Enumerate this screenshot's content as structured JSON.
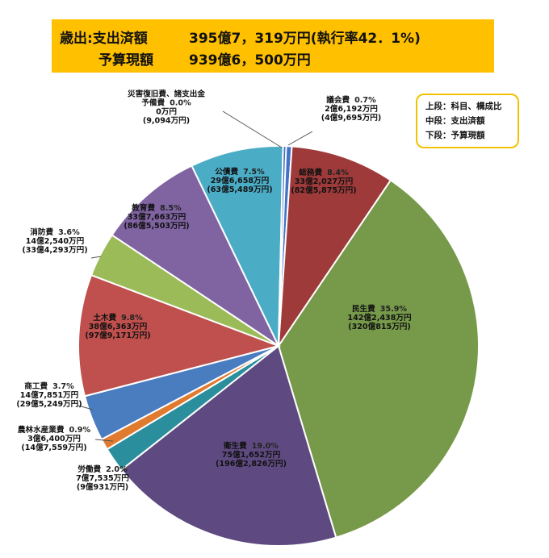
{
  "banner": {
    "expenditure_label": "歳出:支出済額",
    "expenditure_value": "395億7，319万円(執行率42．1%)",
    "budget_label": "予算現額",
    "budget_value": "939億6，500万円"
  },
  "legend_box": {
    "line1": "上段：科目、構成比",
    "line2": "中段：支出済額",
    "line3": "下段：予算現額"
  },
  "chart_data": {
    "type": "pie",
    "start_angle_deg": 1.3,
    "direction": "clockwise",
    "slices": [
      {
        "name": "議会費",
        "pct": 0.7,
        "pct_label": "0.7%",
        "spent": "2億6,192万円",
        "budget": "(4億9,695万円)",
        "color": "#4472C4"
      },
      {
        "name": "総務費",
        "pct": 8.4,
        "pct_label": "8.4%",
        "spent": "33億2,027万円",
        "budget": "(82億5,875万円)",
        "color": "#9E3B3A"
      },
      {
        "name": "民生費",
        "pct": 35.9,
        "pct_label": "35.9%",
        "spent": "142億2,438万円",
        "budget": "(320億815万円)",
        "color": "#76994A"
      },
      {
        "name": "衛生費",
        "pct": 19.0,
        "pct_label": "19.0%",
        "spent": "75億1,652万円",
        "budget": "(196億2,826万円)",
        "color": "#5E4A80"
      },
      {
        "name": "労働費",
        "pct": 2.0,
        "pct_label": "2.0%",
        "spent": "7億7,535万円",
        "budget": "(9億931万円)",
        "color": "#2A8E9C"
      },
      {
        "name": "農林水産業費",
        "pct": 0.9,
        "pct_label": "0.9%",
        "spent": "3億6,400万円",
        "budget": "(14億7,559万円)",
        "color": "#E07A2E"
      },
      {
        "name": "商工費",
        "pct": 3.7,
        "pct_label": "3.7%",
        "spent": "14億7,851万円",
        "budget": "(29億5,249万円)",
        "color": "#4A7CC0"
      },
      {
        "name": "土木費",
        "pct": 9.8,
        "pct_label": "9.8%",
        "spent": "38億6,363万円",
        "budget": "(97億9,171万円)",
        "color": "#C0504D"
      },
      {
        "name": "消防費",
        "pct": 3.6,
        "pct_label": "3.6%",
        "spent": "14億2,540万円",
        "budget": "(33億4,293万円)",
        "color": "#9BBB59"
      },
      {
        "name": "教育費",
        "pct": 8.5,
        "pct_label": "8.5%",
        "spent": "33億7,663万円",
        "budget": "(86億5,503万円)",
        "color": "#8064A2"
      },
      {
        "name": "公債費",
        "pct": 7.5,
        "pct_label": "7.5%",
        "spent": "29億6,658万円",
        "budget": "(63億5,489万円)",
        "color": "#4BACC6"
      },
      {
        "name": "災害復旧費、諸支出金\n予備費",
        "pct": 0.0,
        "pct_label": "0.0%",
        "spent": "0万円",
        "budget": "(9,094万円)",
        "color": "#4472C4"
      }
    ]
  }
}
